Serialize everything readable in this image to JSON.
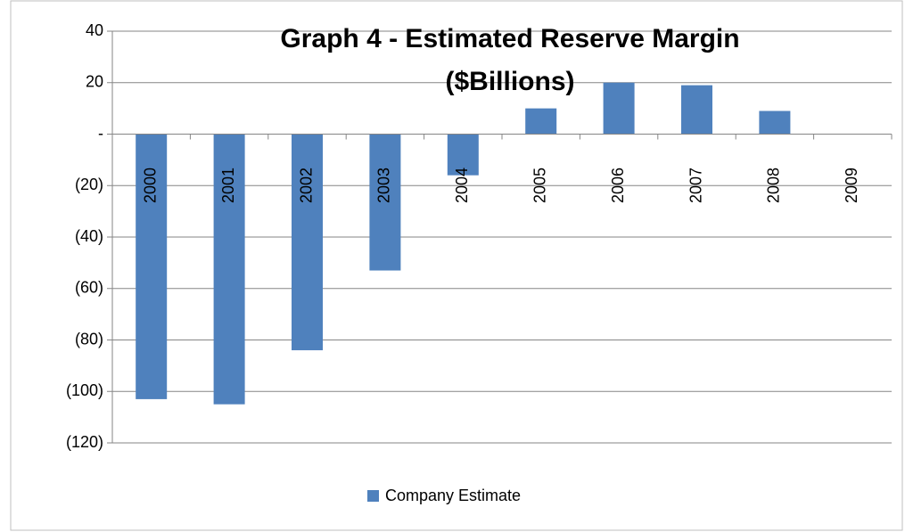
{
  "chart_data": {
    "type": "bar",
    "title": [
      "Graph 4 - Estimated Reserve Margin",
      "($Billions)"
    ],
    "categories": [
      "2000",
      "2001",
      "2002",
      "2003",
      "2004",
      "2005",
      "2006",
      "2007",
      "2008",
      "2009"
    ],
    "series": [
      {
        "name": "Company Estimate",
        "color": "#4f81bd",
        "values": [
          -103,
          -105,
          -84,
          -53,
          -16,
          10,
          20,
          19,
          9,
          0
        ]
      }
    ],
    "ylim": [
      -120,
      40
    ],
    "yticks": [
      40,
      20,
      {
        "value": 0,
        "label": "-"
      },
      {
        "value": -20,
        "label": "(20)"
      },
      {
        "value": -40,
        "label": "(40)"
      },
      {
        "value": -60,
        "label": "(60)"
      },
      {
        "value": -80,
        "label": "(80)"
      },
      {
        "value": -100,
        "label": "(100)"
      },
      {
        "value": -120,
        "label": "(120)"
      }
    ],
    "grid": true,
    "legend": "bottom"
  }
}
